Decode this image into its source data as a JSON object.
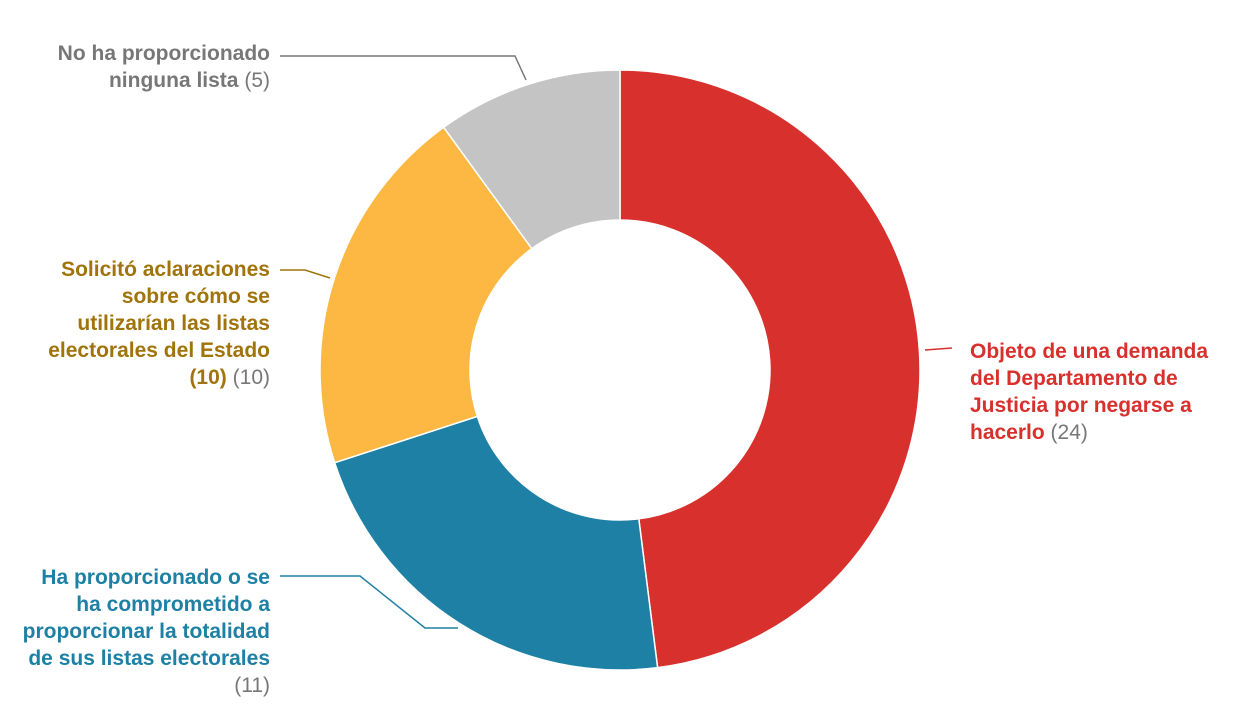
{
  "colors": {
    "red": "#d8302c",
    "blue": "#1e80a4",
    "yellow": "#fdb843",
    "gray": "#c4c4c4",
    "yellow_text": "#a0740a",
    "gray_text": "#777777"
  },
  "chart_data": {
    "type": "pie",
    "style": "donut",
    "start_angle_deg": 0,
    "direction": "clockwise",
    "slices": [
      {
        "label": "Objeto de una demanda del Departamento de Justicia por negarse a hacerlo",
        "value": 24,
        "value_text": "(24)",
        "color": "#d8302c",
        "text_color": "#d8302c"
      },
      {
        "label": "Ha proporcionado o se ha comprometido a proporcionar la totalidad de sus listas electorales",
        "value": 11,
        "value_text": "(11)",
        "color": "#1e80a4",
        "text_color": "#1e80a4"
      },
      {
        "label": "Solicitó aclaraciones sobre cómo se utilizarían las listas electorales del Estado",
        "bold_suffix": "(10)",
        "value": 10,
        "value_text": "(10)",
        "color": "#fdb843",
        "text_color": "#a0740a"
      },
      {
        "label": "No ha proporcionado ninguna lista",
        "value": 5,
        "value_text": "(5)",
        "color": "#c4c4c4",
        "text_color": "#777777"
      }
    ]
  }
}
